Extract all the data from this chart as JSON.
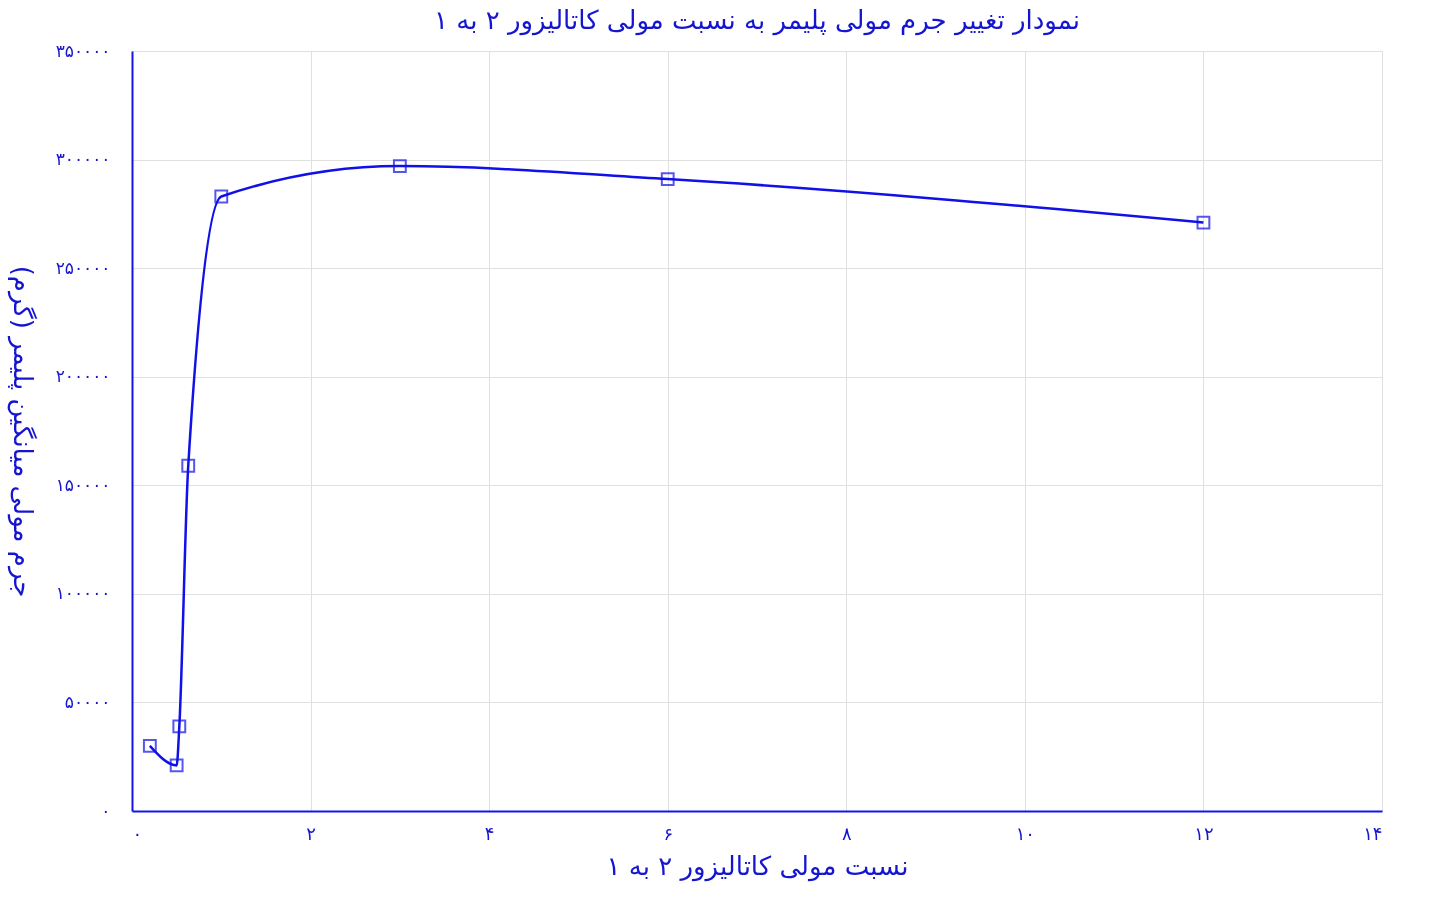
{
  "chart_data": {
    "type": "line",
    "title": "نمودار تغییر جرم مولی پلیمر به نسبت مولی کاتالیزور ۲ به ۱",
    "xlabel": "نسبت مولی کاتالیزور ۲ به ۱",
    "ylabel": "جرم مولی میانگین پلیمر (گرم)",
    "x": [
      0.2,
      0.5,
      0.53,
      0.63,
      1.0,
      3.0,
      6.0,
      12.0
    ],
    "series": [
      {
        "color": "#1010e8",
        "values": [
          30000,
          21000,
          39000,
          159000,
          283000,
          297000,
          291000,
          271000
        ]
      }
    ],
    "xlim": [
      0,
      14
    ],
    "ylim": [
      0,
      350000
    ],
    "xticks": [
      {
        "value": 0,
        "label": "۰"
      },
      {
        "value": 2,
        "label": "۲"
      },
      {
        "value": 4,
        "label": "۴"
      },
      {
        "value": 6,
        "label": "۶"
      },
      {
        "value": 8,
        "label": "۸"
      },
      {
        "value": 10,
        "label": "۱۰"
      },
      {
        "value": 12,
        "label": "۱۲"
      },
      {
        "value": 14,
        "label": "۱۴"
      }
    ],
    "yticks": [
      {
        "value": 0,
        "label": "۰"
      },
      {
        "value": 50000,
        "label": "۵۰۰۰۰"
      },
      {
        "value": 100000,
        "label": "۱۰۰۰۰۰"
      },
      {
        "value": 150000,
        "label": "۱۵۰۰۰۰"
      },
      {
        "value": 200000,
        "label": "۲۰۰۰۰۰"
      },
      {
        "value": 250000,
        "label": "۲۵۰۰۰۰"
      },
      {
        "value": 300000,
        "label": "۳۰۰۰۰۰"
      },
      {
        "value": 350000,
        "label": "۳۵۰۰۰۰"
      }
    ],
    "grid": true,
    "marker": "square",
    "line_style": "solid"
  }
}
